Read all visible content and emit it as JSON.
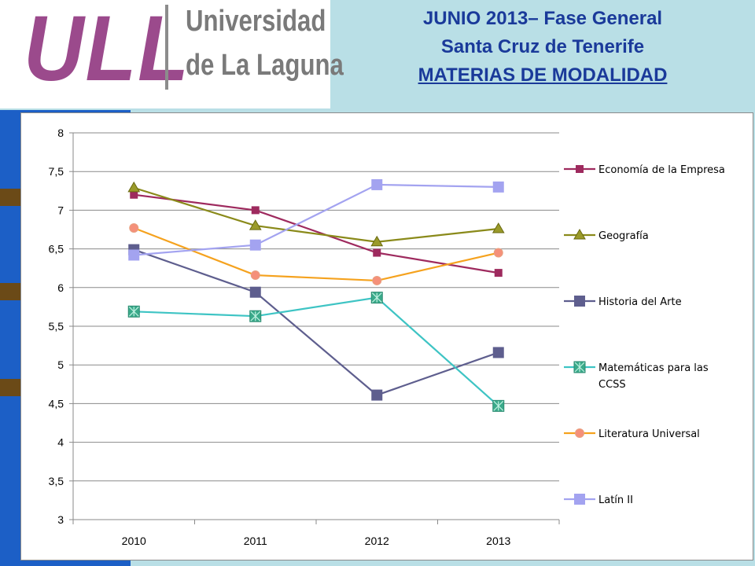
{
  "logo": {
    "mark": "ULL",
    "line1": "Universidad",
    "line2": "de La Laguna"
  },
  "header": {
    "line1": "JUNIO 2013– Fase General",
    "line2": "Santa Cruz de Tenerife",
    "line3": "MATERIAS DE MODALIDAD"
  },
  "chart_data": {
    "type": "line",
    "categories": [
      "2010",
      "2011",
      "2012",
      "2013"
    ],
    "ylim": [
      3,
      8
    ],
    "yticks": [
      "3",
      "3,5",
      "4",
      "4,5",
      "5",
      "5,5",
      "6",
      "6,5",
      "7",
      "7,5",
      "8"
    ],
    "legend_position": "right",
    "series": [
      {
        "name": "Economía de la Empresa",
        "values": [
          7.2,
          7.0,
          6.45,
          6.19
        ],
        "color": "#9e2a5e",
        "marker": "square"
      },
      {
        "name": "Geografía",
        "values": [
          7.29,
          6.8,
          6.59,
          6.76
        ],
        "color": "#8a8a1a",
        "marker": "triangle"
      },
      {
        "name": "Historia del Arte",
        "values": [
          6.49,
          5.94,
          4.61,
          5.16
        ],
        "color": "#5e5e8e",
        "marker": "square-large"
      },
      {
        "name": "Matemáticas para las CCSS",
        "values": [
          5.69,
          5.63,
          5.87,
          4.47
        ],
        "color": "#3ec4c4",
        "marker": "star-square"
      },
      {
        "name": "Literatura Universal",
        "values": [
          6.77,
          6.16,
          6.09,
          6.45
        ],
        "color": "#f5a21e",
        "marker": "circle"
      },
      {
        "name": "Latín II",
        "values": [
          6.42,
          6.55,
          7.33,
          7.3
        ],
        "color": "#a3a3f0",
        "marker": "square-large"
      }
    ]
  }
}
